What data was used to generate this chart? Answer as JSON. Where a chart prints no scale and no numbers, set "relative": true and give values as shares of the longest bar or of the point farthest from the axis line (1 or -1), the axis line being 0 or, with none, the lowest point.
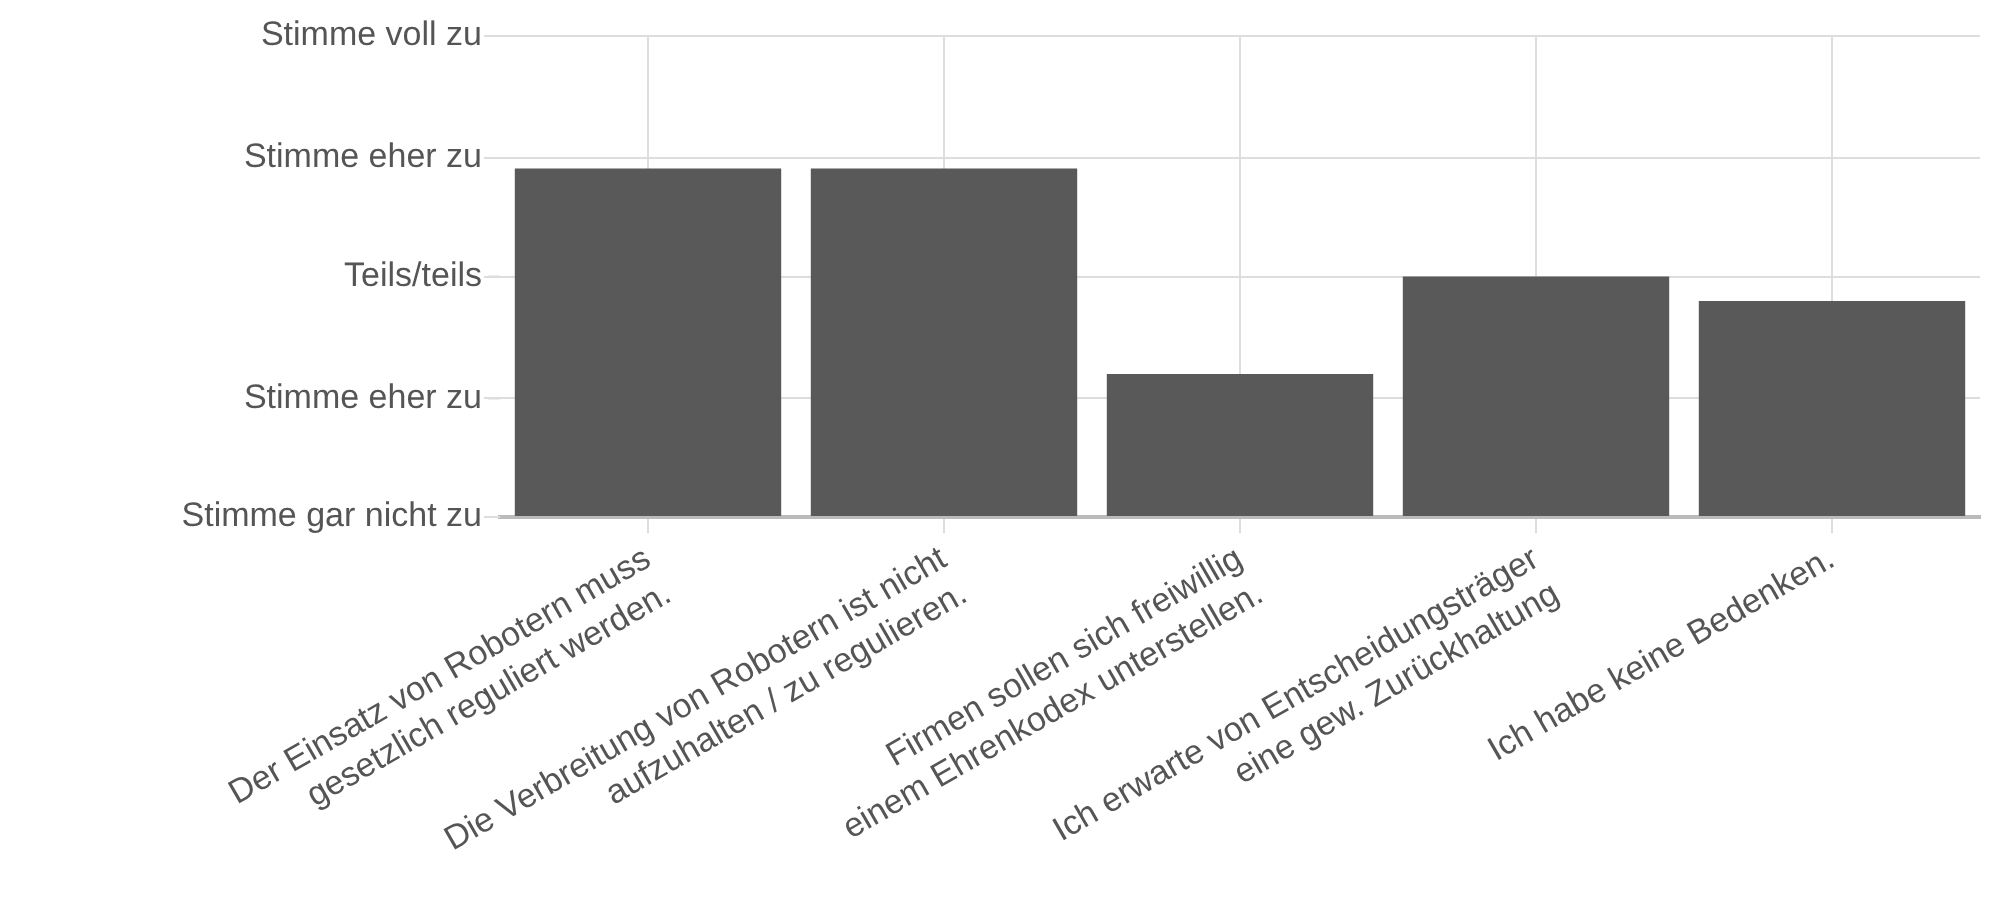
{
  "chart_data": {
    "type": "bar",
    "categories": [
      "Der Einsatz von Robotern muss\ngesetzlich reguliert werden.",
      "Die Verbreitung von Robotern ist nicht\naufzuhalten / zu regulieren.",
      "Firmen sollen sich freiwillig\neinem Ehrenkodex unterstellen.",
      "Ich erwarte von Entscheidungsträger\neine gew. Zurückhaltung",
      "Ich habe keine Bedenken."
    ],
    "values": [
      1,
      1,
      0.41,
      0.69,
      0.62
    ],
    "color": "#595959",
    "relative": true,
    "ref_lines": [
      {
        "axis": "y",
        "value": 0,
        "label": "Stimme gar nicht zu",
        "color": "#dddddd"
      },
      {
        "axis": "y",
        "value": 0.34,
        "label": "Stimme eher zu",
        "color": "#dddddd"
      },
      {
        "axis": "y",
        "value": 0.69,
        "label": "Teils/teils",
        "color": "#dddddd"
      },
      {
        "axis": "y",
        "value": 1.03,
        "label": "Stimme eher zu",
        "color": "#dddddd"
      },
      {
        "axis": "y",
        "value": 1.38,
        "label": "Stimme voll zu",
        "color": "#dddddd"
      }
    ],
    "grid": true
  }
}
